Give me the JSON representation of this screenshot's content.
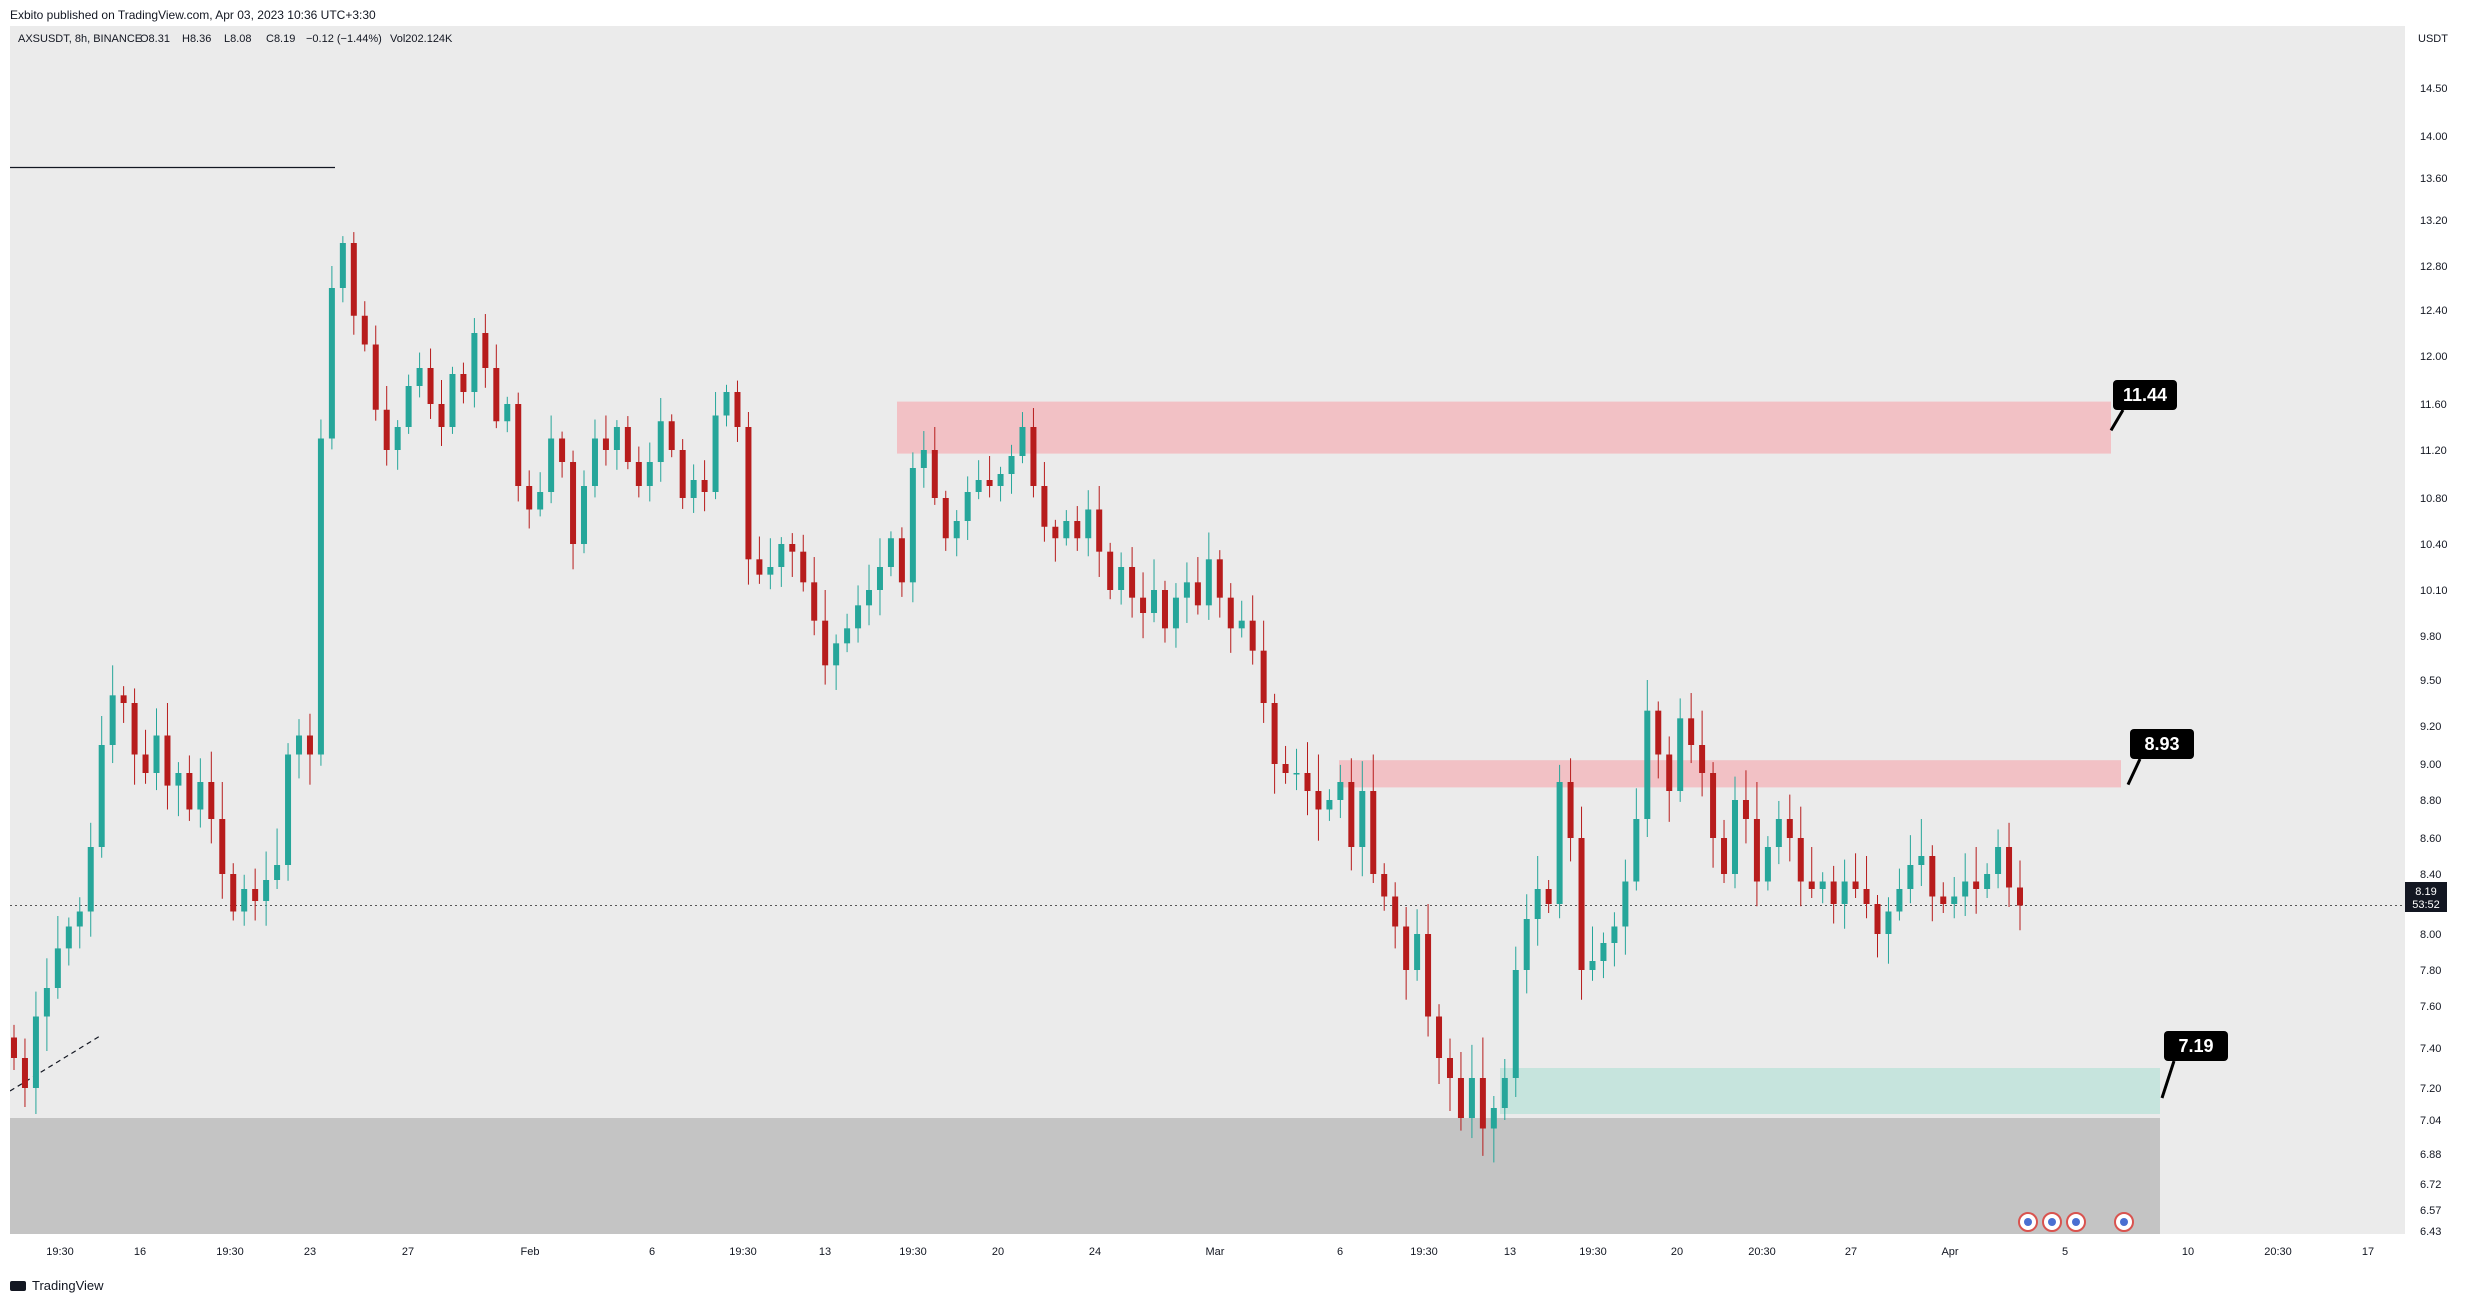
{
  "header": {
    "published": "Exbito published on TradingView.com, Apr 03, 2023 10:36 UTC+3:30"
  },
  "legend": {
    "symbol": "AXSUSDT, 8h, BINANCE",
    "open": "O8.31",
    "high": "H8.36",
    "low": "L8.08",
    "close": "C8.19",
    "change": "−0.12 (−1.44%)",
    "volume": "Vol202.124K"
  },
  "footer": {
    "brand": "TradingView"
  },
  "colors": {
    "background": "#ebebeb",
    "up": "#26a69a",
    "down": "#b71c1c",
    "resistance_zone": "#f2c1c5",
    "support_zone": "#c6e4dd",
    "gray_zone": "#c4c4c4",
    "badge": "#000000"
  },
  "chart_data": {
    "type": "candlestick",
    "currency": "USDT",
    "ylim": [
      6.43,
      15.0
    ],
    "price_ticks": [
      "14.50",
      "14.00",
      "13.60",
      "13.20",
      "12.80",
      "12.40",
      "12.00",
      "11.60",
      "11.20",
      "10.80",
      "10.40",
      "10.10",
      "9.80",
      "9.50",
      "9.20",
      "9.00",
      "8.80",
      "8.60",
      "8.40",
      "8.00",
      "7.80",
      "7.60",
      "7.40",
      "7.20",
      "7.04",
      "6.88",
      "6.72",
      "6.57",
      "6.43"
    ],
    "time_ticks": [
      "19:30",
      "16",
      "19:30",
      "23",
      "27",
      "Feb",
      "6",
      "19:30",
      "13",
      "19:30",
      "20",
      "24",
      "Mar",
      "6",
      "19:30",
      "13",
      "19:30",
      "20",
      "20:30",
      "27",
      "Apr",
      "5",
      "10",
      "20:30",
      "17"
    ],
    "last_price": "8.19",
    "countdown": "53:52",
    "series_close": [
      7.35,
      7.2,
      7.55,
      7.7,
      7.92,
      8.05,
      8.15,
      8.55,
      9.1,
      9.4,
      9.35,
      9.05,
      8.95,
      9.15,
      8.88,
      8.95,
      8.75,
      8.9,
      8.7,
      8.4,
      8.15,
      8.3,
      8.22,
      8.36,
      8.45,
      9.05,
      9.15,
      9.05,
      11.3,
      12.6,
      13.0,
      12.35,
      12.1,
      11.55,
      11.2,
      11.4,
      11.75,
      11.9,
      11.6,
      11.4,
      11.85,
      11.7,
      12.2,
      11.9,
      11.45,
      11.6,
      10.9,
      10.7,
      10.85,
      11.3,
      11.1,
      10.4,
      10.9,
      11.3,
      11.2,
      11.4,
      11.1,
      10.9,
      11.1,
      11.45,
      11.2,
      10.8,
      10.95,
      10.85,
      11.5,
      11.7,
      11.4,
      10.3,
      10.2,
      10.25,
      10.4,
      10.35,
      10.15,
      9.9,
      9.6,
      9.75,
      9.85,
      10.0,
      10.1,
      10.25,
      10.45,
      10.15,
      11.05,
      11.2,
      10.8,
      10.45,
      10.6,
      10.85,
      10.95,
      10.9,
      11.0,
      11.15,
      11.4,
      10.9,
      10.55,
      10.45,
      10.6,
      10.45,
      10.7,
      10.35,
      10.1,
      10.25,
      10.05,
      9.95,
      10.1,
      9.85,
      10.05,
      10.15,
      10.0,
      10.3,
      10.05,
      9.85,
      9.9,
      9.7,
      9.35,
      9.0,
      8.95,
      8.95,
      8.85,
      8.75,
      8.8,
      8.9,
      8.55,
      8.85,
      8.4,
      8.25,
      8.05,
      7.8,
      8.0,
      7.55,
      7.35,
      7.25,
      7.05,
      7.25,
      7.0,
      7.1,
      7.25,
      7.8,
      8.1,
      8.3,
      8.2,
      8.9,
      8.6,
      7.8,
      7.85,
      7.95,
      8.05,
      8.35,
      8.7,
      9.3,
      9.05,
      8.85,
      9.25,
      9.1,
      8.95,
      8.6,
      8.4,
      8.8,
      8.7,
      8.35,
      8.55,
      8.7,
      8.6,
      8.35,
      8.3,
      8.35,
      8.2,
      8.35,
      8.3,
      8.2,
      8.0,
      8.15,
      8.3,
      8.45,
      8.5,
      8.25,
      8.2,
      8.25,
      8.35,
      8.3,
      8.4,
      8.55,
      8.31,
      8.19
    ],
    "zones": [
      {
        "name": "resistance-upper",
        "high": 11.62,
        "low": 11.17,
        "color": "#f2c1c5"
      },
      {
        "name": "resistance-lower",
        "high": 9.02,
        "low": 8.87,
        "color": "#f2c1c5"
      },
      {
        "name": "support",
        "high": 7.3,
        "low": 7.07,
        "color": "#c6e4dd"
      },
      {
        "name": "demand-gray",
        "high": 7.05,
        "low": 6.43,
        "color": "#c4c4c4"
      }
    ],
    "annotations": [
      {
        "label": "11.44",
        "price": 11.44
      },
      {
        "label": "8.93",
        "price": 8.93
      },
      {
        "label": "7.19",
        "price": 7.19
      }
    ],
    "horizontal_line": {
      "price": 13.7
    }
  }
}
